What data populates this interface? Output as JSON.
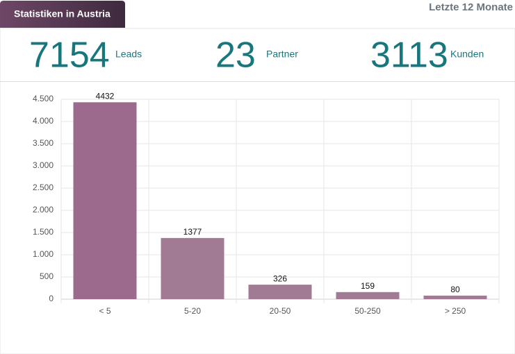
{
  "tab": "Statistiken in Austria",
  "period": "Letzte 12 Monate",
  "stats": [
    {
      "value": 7154,
      "label": "Leads"
    },
    {
      "value": 23,
      "label": "Partner"
    },
    {
      "value": 3113,
      "label": "Kunden"
    }
  ],
  "chart_data": {
    "type": "bar",
    "categories": [
      "< 5",
      "5-20",
      "20-50",
      "50-250",
      "> 250"
    ],
    "values": [
      4432,
      1377,
      326,
      159,
      80
    ],
    "colors": [
      "#9b6a8c",
      "#a07b93",
      "#a07b93",
      "#a07b93",
      "#a07b93"
    ],
    "ylim": [
      0,
      4500
    ],
    "yticks": [
      0,
      500,
      {
        "value": 1000,
        "label": "1.000"
      },
      {
        "value": 1500,
        "label": "1.500"
      },
      {
        "value": 2000,
        "label": "2.000"
      },
      {
        "value": 2500,
        "label": "2.500"
      },
      {
        "value": 3000,
        "label": "3.000"
      },
      {
        "value": 3500,
        "label": "3.500"
      },
      {
        "value": 4000,
        "label": "4.000"
      },
      {
        "value": 4500,
        "label": "4.500"
      }
    ],
    "grid": true
  }
}
